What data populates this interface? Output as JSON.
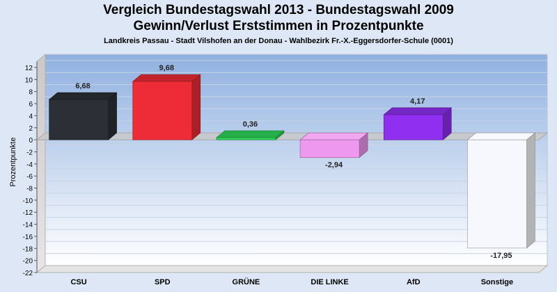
{
  "chart_data": {
    "type": "bar",
    "title": "Vergleich Bundestagswahl 2013 - Bundestagswahl 2009",
    "subtitle": "Gewinn/Verlust Erststimmen in Prozentpunkte",
    "subtitle2": "Landkreis Passau - Stadt Vilshofen an der Donau - Wahlbezirk Fr.-X.-Eggersdorfer-Schule (0001)",
    "ylabel": "Prozentpunkte",
    "ylim": [
      -22,
      13
    ],
    "yticks": [
      12,
      10,
      8,
      6,
      4,
      2,
      0,
      -2,
      -4,
      -6,
      -8,
      -10,
      -12,
      -14,
      -16,
      -18,
      -20,
      -22
    ],
    "categories": [
      "CSU",
      "SPD",
      "GRÜNE",
      "DIE LINKE",
      "AfD",
      "Sonstige"
    ],
    "values": [
      6.68,
      9.68,
      0.36,
      -2.94,
      4.17,
      -17.95
    ],
    "value_labels": [
      "6,68",
      "9,68",
      "0,36",
      "-2,94",
      "4,17",
      "-17,95"
    ],
    "colors": [
      "#2b2f36",
      "#ee2c35",
      "#2ed45a",
      "#ef98ef",
      "#8f2ff0",
      "#f7f8fb"
    ],
    "grid": true,
    "legend": "none"
  }
}
